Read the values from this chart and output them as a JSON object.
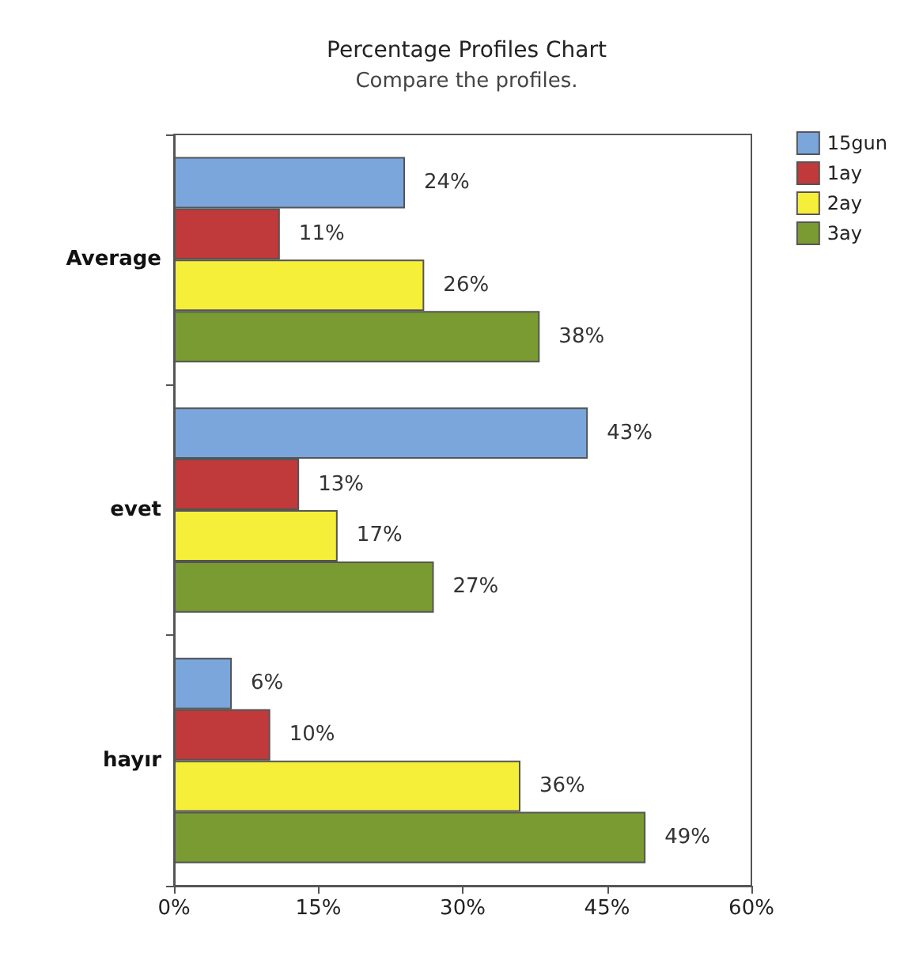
{
  "chart_data": {
    "type": "bar",
    "orientation": "horizontal",
    "title": "Percentage Profiles Chart",
    "subtitle": "Compare the profiles.",
    "categories": [
      "Average",
      "evet",
      "hayır"
    ],
    "series": [
      {
        "name": "15gun",
        "color": "#7aa6dc",
        "values": [
          24,
          43,
          6
        ],
        "value_labels": [
          "24%",
          "43%",
          "6%"
        ]
      },
      {
        "name": "1ay",
        "color": "#c0393b",
        "values": [
          11,
          13,
          10
        ],
        "value_labels": [
          "11%",
          "13%",
          "10%"
        ]
      },
      {
        "name": "2ay",
        "color": "#f5ef3a",
        "values": [
          26,
          17,
          36
        ],
        "value_labels": [
          "26%",
          "17%",
          "36%"
        ]
      },
      {
        "name": "3ay",
        "color": "#7a9a32",
        "values": [
          38,
          27,
          49
        ],
        "value_labels": [
          "38%",
          "27%",
          "49%"
        ]
      }
    ],
    "xlim": [
      0,
      60
    ],
    "xticks": [
      {
        "value": 0,
        "label": "0%"
      },
      {
        "value": 15,
        "label": "15%"
      },
      {
        "value": 30,
        "label": "30%"
      },
      {
        "value": 45,
        "label": "45%"
      },
      {
        "value": 60,
        "label": "60%"
      }
    ],
    "legend": "top right",
    "grid": false
  }
}
